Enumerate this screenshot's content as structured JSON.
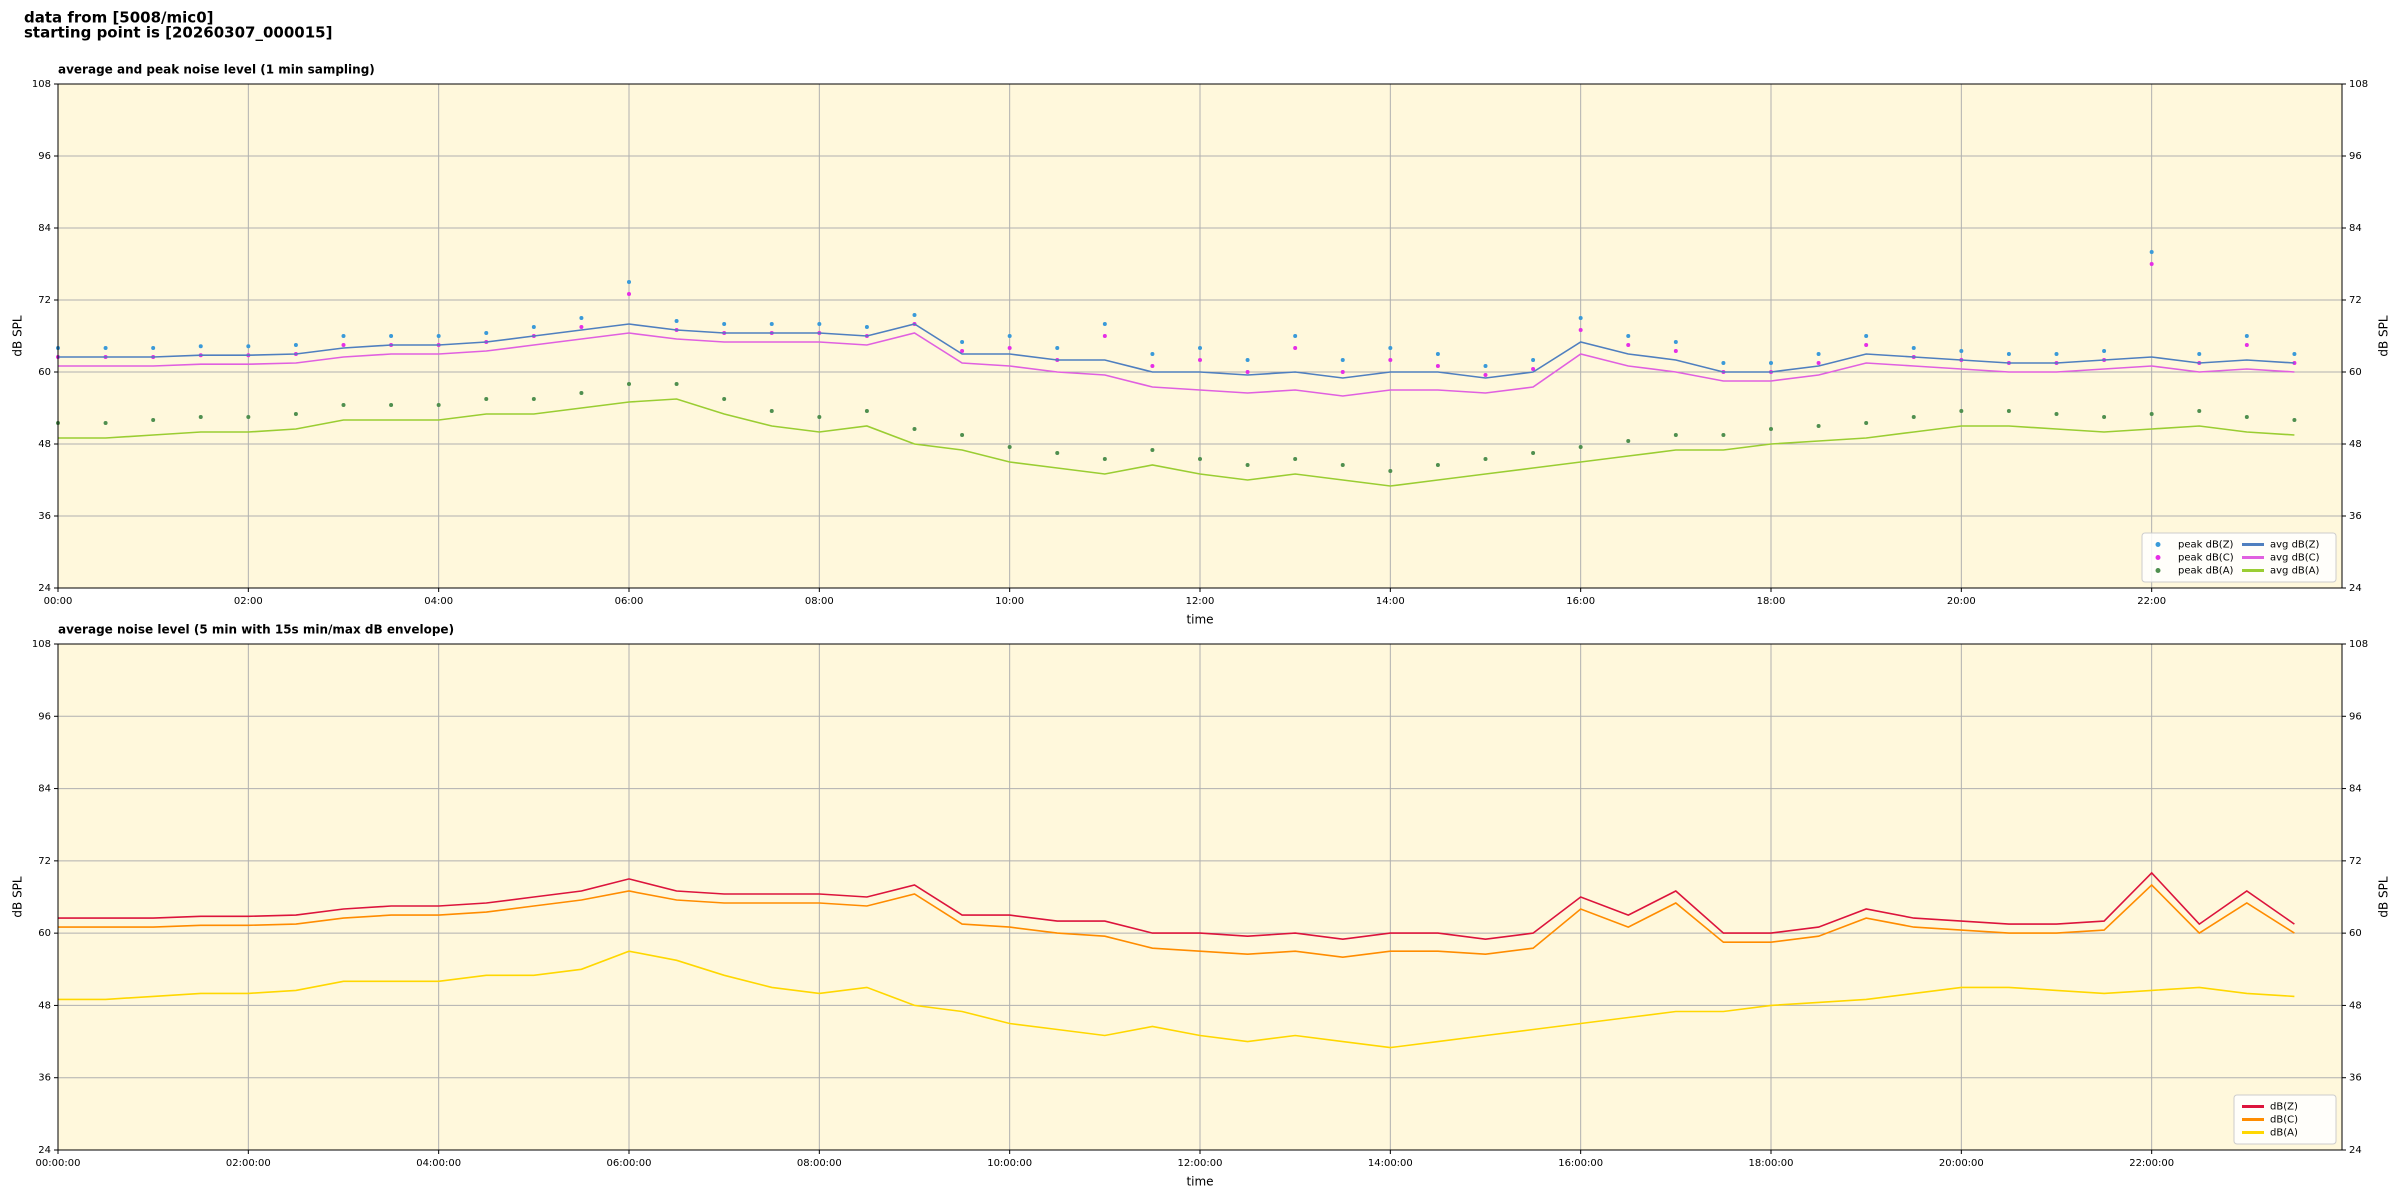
{
  "header": {
    "lines": [
      "data from [5008/mic0]",
      "starting point is [20260307_000015]"
    ]
  },
  "chart_data": [
    {
      "type": "line",
      "title": "average and peak noise level (1 min sampling)",
      "xlabel": "time",
      "ylabel": "dB SPL",
      "xlim": [
        0,
        24
      ],
      "ylim": [
        24,
        108
      ],
      "yticks": [
        24,
        36,
        48,
        60,
        72,
        84,
        96,
        108
      ],
      "xticks": [
        {
          "value": 0,
          "label": "00:00"
        },
        {
          "value": 2,
          "label": "02:00"
        },
        {
          "value": 4,
          "label": "04:00"
        },
        {
          "value": 6,
          "label": "06:00"
        },
        {
          "value": 8,
          "label": "08:00"
        },
        {
          "value": 10,
          "label": "10:00"
        },
        {
          "value": 12,
          "label": "12:00"
        },
        {
          "value": 14,
          "label": "14:00"
        },
        {
          "value": 16,
          "label": "16:00"
        },
        {
          "value": 18,
          "label": "18:00"
        },
        {
          "value": 20,
          "label": "20:00"
        },
        {
          "value": 22,
          "label": "22:00"
        }
      ],
      "grid": true,
      "legend": "lower right",
      "background": "#fff8dc",
      "x": [
        0,
        0.5,
        1,
        1.5,
        2,
        2.5,
        3,
        3.5,
        4,
        4.5,
        5,
        5.5,
        6,
        6.5,
        7,
        7.5,
        8,
        8.5,
        9,
        9.5,
        10,
        10.5,
        11,
        11.5,
        12,
        12.5,
        13,
        13.5,
        14,
        14.5,
        15,
        15.5,
        16,
        16.5,
        17,
        17.5,
        18,
        18.5,
        19,
        19.5,
        20,
        20.5,
        21,
        21.5,
        22,
        22.5,
        23,
        23.5
      ],
      "series": [
        {
          "name": "peak dB(Z)",
          "type": "scatter",
          "color": "#3a9ad9",
          "values": [
            64,
            64,
            64,
            64.3,
            64.3,
            64.5,
            66,
            66,
            66,
            66.5,
            67.5,
            69,
            75,
            68.5,
            68,
            68,
            68,
            67.5,
            69.5,
            65,
            66,
            64,
            68,
            63,
            64,
            62,
            66,
            62,
            64,
            63,
            61,
            62,
            69,
            66,
            65,
            61.5,
            61.5,
            63,
            66,
            64,
            63.5,
            63,
            63,
            63.5,
            80,
            63,
            66,
            63
          ]
        },
        {
          "name": "peak dB(C)",
          "type": "scatter",
          "color": "#e62ee6",
          "values": [
            62.5,
            62.5,
            62.5,
            62.8,
            62.8,
            63,
            64.5,
            64.5,
            64.5,
            65,
            66,
            67.5,
            73,
            67,
            66.5,
            66.5,
            66.5,
            66,
            68,
            63.5,
            64,
            62,
            66,
            61,
            62,
            60,
            64,
            60,
            62,
            61,
            59.5,
            60.5,
            67,
            64.5,
            63.5,
            60,
            60,
            61.5,
            64.5,
            62.5,
            62,
            61.5,
            61.5,
            62,
            78,
            61.5,
            64.5,
            61.5
          ]
        },
        {
          "name": "peak dB(A)",
          "type": "scatter",
          "color": "#4f8f4f",
          "values": [
            51.5,
            51.5,
            52,
            52.5,
            52.5,
            53,
            54.5,
            54.5,
            54.5,
            55.5,
            55.5,
            56.5,
            58,
            58,
            55.5,
            53.5,
            52.5,
            53.5,
            50.5,
            49.5,
            47.5,
            46.5,
            45.5,
            47,
            45.5,
            44.5,
            45.5,
            44.5,
            43.5,
            44.5,
            45.5,
            46.5,
            47.5,
            48.5,
            49.5,
            49.5,
            50.5,
            51,
            51.5,
            52.5,
            53.5,
            53.5,
            53,
            52.5,
            53,
            53.5,
            52.5,
            52
          ]
        },
        {
          "name": "avg dB(Z)",
          "type": "line",
          "color": "#4f7fbf",
          "values": [
            62.5,
            62.5,
            62.5,
            62.8,
            62.8,
            63,
            64,
            64.5,
            64.5,
            65,
            66,
            67,
            68,
            67,
            66.5,
            66.5,
            66.5,
            66,
            68,
            63,
            63,
            62,
            62,
            60,
            60,
            59.5,
            60,
            59,
            60,
            60,
            59,
            60,
            65,
            63,
            62,
            60,
            60,
            61,
            63,
            62.5,
            62,
            61.5,
            61.5,
            62,
            62.5,
            61.5,
            62,
            61.5
          ]
        },
        {
          "name": "avg dB(C)",
          "type": "line",
          "color": "#e060e0",
          "values": [
            61,
            61,
            61,
            61.3,
            61.3,
            61.5,
            62.5,
            63,
            63,
            63.5,
            64.5,
            65.5,
            66.5,
            65.5,
            65,
            65,
            65,
            64.5,
            66.5,
            61.5,
            61,
            60,
            59.5,
            57.5,
            57,
            56.5,
            57,
            56,
            57,
            57,
            56.5,
            57.5,
            63,
            61,
            60,
            58.5,
            58.5,
            59.5,
            61.5,
            61,
            60.5,
            60,
            60,
            60.5,
            61,
            60,
            60.5,
            60
          ]
        },
        {
          "name": "avg dB(A)",
          "type": "line",
          "color": "#9acd32",
          "values": [
            49,
            49,
            49.5,
            50,
            50,
            50.5,
            52,
            52,
            52,
            53,
            53,
            54,
            55,
            55.5,
            53,
            51,
            50,
            51,
            48,
            47,
            45,
            44,
            43,
            44.5,
            43,
            42,
            43,
            42,
            41,
            42,
            43,
            44,
            45,
            46,
            47,
            47,
            48,
            48.5,
            49,
            50,
            51,
            51,
            50.5,
            50,
            50.5,
            51,
            50,
            49.5
          ]
        }
      ]
    },
    {
      "type": "line",
      "title": "average noise level (5 min with 15s min/max dB envelope)",
      "xlabel": "time",
      "ylabel": "dB SPL",
      "xlim": [
        0,
        24
      ],
      "ylim": [
        24,
        108
      ],
      "yticks": [
        24,
        36,
        48,
        60,
        72,
        84,
        96,
        108
      ],
      "xticks": [
        {
          "value": 0,
          "label": "00:00:00"
        },
        {
          "value": 2,
          "label": "02:00:00"
        },
        {
          "value": 4,
          "label": "04:00:00"
        },
        {
          "value": 6,
          "label": "06:00:00"
        },
        {
          "value": 8,
          "label": "08:00:00"
        },
        {
          "value": 10,
          "label": "10:00:00"
        },
        {
          "value": 12,
          "label": "12:00:00"
        },
        {
          "value": 14,
          "label": "14:00:00"
        },
        {
          "value": 16,
          "label": "16:00:00"
        },
        {
          "value": 18,
          "label": "18:00:00"
        },
        {
          "value": 20,
          "label": "20:00:00"
        },
        {
          "value": 22,
          "label": "22:00:00"
        }
      ],
      "grid": true,
      "legend": "lower right",
      "background": "#fff8dc",
      "x": [
        0,
        0.5,
        1,
        1.5,
        2,
        2.5,
        3,
        3.5,
        4,
        4.5,
        5,
        5.5,
        6,
        6.5,
        7,
        7.5,
        8,
        8.5,
        9,
        9.5,
        10,
        10.5,
        11,
        11.5,
        12,
        12.5,
        13,
        13.5,
        14,
        14.5,
        15,
        15.5,
        16,
        16.5,
        17,
        17.5,
        18,
        18.5,
        19,
        19.5,
        20,
        20.5,
        21,
        21.5,
        22,
        22.5,
        23,
        23.5
      ],
      "series": [
        {
          "name": "dB(Z)",
          "type": "line",
          "color": "#dc143c",
          "values": [
            62.5,
            62.5,
            62.5,
            62.8,
            62.8,
            63,
            64,
            64.5,
            64.5,
            65,
            66,
            67,
            69,
            67,
            66.5,
            66.5,
            66.5,
            66,
            68,
            63,
            63,
            62,
            62,
            60,
            60,
            59.5,
            60,
            59,
            60,
            60,
            59,
            60,
            66,
            63,
            67,
            60,
            60,
            61,
            64,
            62.5,
            62,
            61.5,
            61.5,
            62,
            70,
            61.5,
            67,
            61.5
          ]
        },
        {
          "name": "dB(C)",
          "type": "line",
          "color": "#ff8c00",
          "values": [
            61,
            61,
            61,
            61.3,
            61.3,
            61.5,
            62.5,
            63,
            63,
            63.5,
            64.5,
            65.5,
            67,
            65.5,
            65,
            65,
            65,
            64.5,
            66.5,
            61.5,
            61,
            60,
            59.5,
            57.5,
            57,
            56.5,
            57,
            56,
            57,
            57,
            56.5,
            57.5,
            64,
            61,
            65,
            58.5,
            58.5,
            59.5,
            62.5,
            61,
            60.5,
            60,
            60,
            60.5,
            68,
            60,
            65,
            60
          ]
        },
        {
          "name": "dB(A)",
          "type": "line",
          "color": "#ffd700",
          "values": [
            49,
            49,
            49.5,
            50,
            50,
            50.5,
            52,
            52,
            52,
            53,
            53,
            54,
            57,
            55.5,
            53,
            51,
            50,
            51,
            48,
            47,
            45,
            44,
            43,
            44.5,
            43,
            42,
            43,
            42,
            41,
            42,
            43,
            44,
            45,
            46,
            47,
            47,
            48,
            48.5,
            49,
            50,
            51,
            51,
            50.5,
            50,
            50.5,
            51,
            50,
            49.5
          ]
        }
      ]
    }
  ]
}
